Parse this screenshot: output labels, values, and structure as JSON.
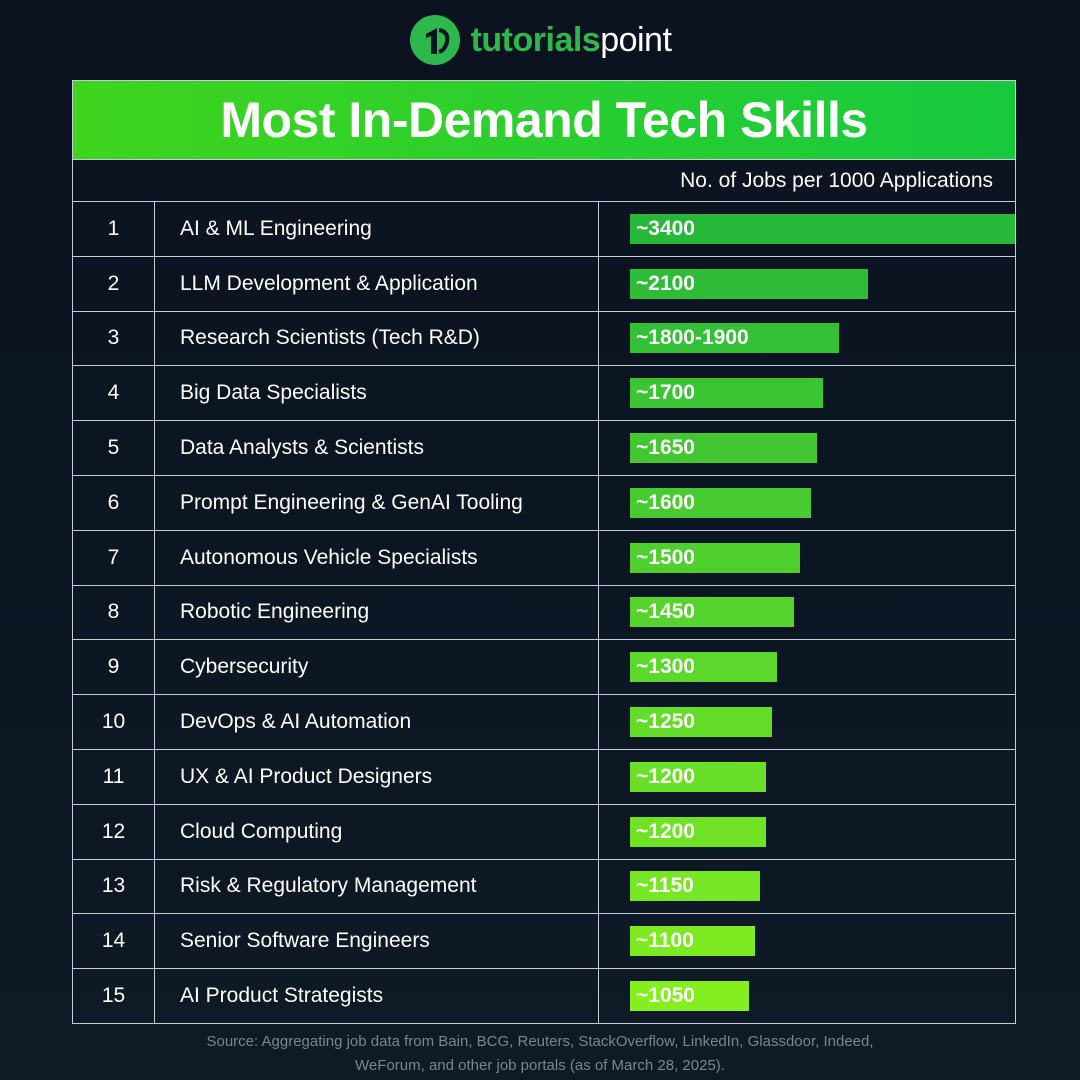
{
  "brand": {
    "name_part1": "tutorials",
    "name_part2": "point",
    "icon": "tutorialspoint-logo-icon",
    "color": "#2db84d"
  },
  "title": "Most In-Demand Tech Skills",
  "column_header": "No. of Jobs per 1000 Applications",
  "source_line1": "Source: Aggregating job data from Bain, BCG, Reuters, StackOverflow, LinkedIn, Glassdoor, Indeed,",
  "source_line2": "WeForum, and other job portals (as of March 28, 2025).",
  "colors": {
    "title_gradient_start": "#3fd41e",
    "title_gradient_end": "#17c93f",
    "bar_top": "#27b83a",
    "bar_bottom": "#84ee1f"
  },
  "chart_data": {
    "type": "bar",
    "orientation": "horizontal",
    "title": "Most In-Demand Tech Skills",
    "xlabel": "No. of Jobs per 1000 Applications",
    "xlim": [
      0,
      3400
    ],
    "rows": [
      {
        "rank": "1",
        "skill": "AI & ML Engineering",
        "label": "~3400",
        "value": 3400
      },
      {
        "rank": "2",
        "skill": "LLM Development & Application",
        "label": "~2100",
        "value": 2100
      },
      {
        "rank": "3",
        "skill": "Research Scientists (Tech R&D)",
        "label": "~1800-1900",
        "value": 1850
      },
      {
        "rank": "4",
        "skill": "Big Data Specialists",
        "label": "~1700",
        "value": 1700
      },
      {
        "rank": "5",
        "skill": "Data Analysts & Scientists",
        "label": "~1650",
        "value": 1650
      },
      {
        "rank": "6",
        "skill": "Prompt Engineering & GenAI Tooling",
        "label": "~1600",
        "value": 1600
      },
      {
        "rank": "7",
        "skill": "Autonomous Vehicle Specialists",
        "label": "~1500",
        "value": 1500
      },
      {
        "rank": "8",
        "skill": "Robotic Engineering",
        "label": "~1450",
        "value": 1450
      },
      {
        "rank": "9",
        "skill": "Cybersecurity",
        "label": "~1300",
        "value": 1300
      },
      {
        "rank": "10",
        "skill": "DevOps & AI Automation",
        "label": "~1250",
        "value": 1250
      },
      {
        "rank": "11",
        "skill": "UX & AI Product Designers",
        "label": "~1200",
        "value": 1200
      },
      {
        "rank": "12",
        "skill": "Cloud Computing",
        "label": "~1200",
        "value": 1200
      },
      {
        "rank": "13",
        "skill": "Risk & Regulatory Management",
        "label": "~1150",
        "value": 1150
      },
      {
        "rank": "14",
        "skill": "Senior Software Engineers",
        "label": "~1100",
        "value": 1100
      },
      {
        "rank": "15",
        "skill": "AI Product Strategists",
        "label": "~1050",
        "value": 1050
      }
    ]
  }
}
